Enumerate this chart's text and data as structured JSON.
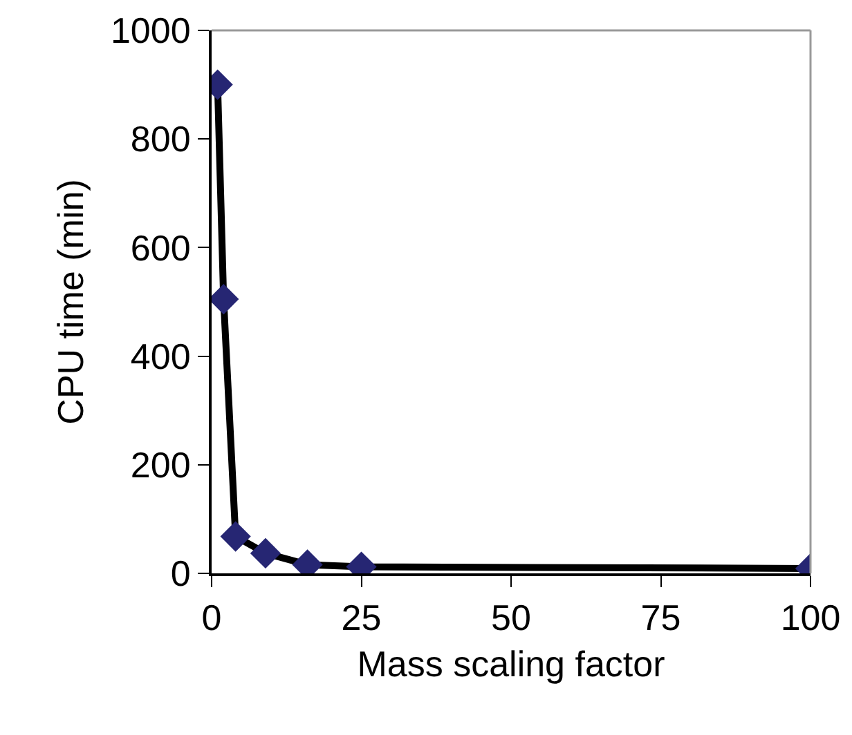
{
  "chart_data": {
    "type": "line",
    "xlabel": "Mass scaling factor",
    "ylabel": "CPU time (min)",
    "x": [
      1,
      2,
      4,
      9,
      16,
      25,
      100
    ],
    "series": [
      {
        "color": "#262673",
        "values": [
          900,
          505,
          68,
          37,
          16,
          12,
          9
        ]
      }
    ],
    "xlim": [
      0,
      100
    ],
    "xticks": [
      0,
      25,
      50,
      75,
      100
    ],
    "ylim": [
      0,
      1000
    ],
    "yticks": [
      0,
      200,
      400,
      600,
      800,
      1000
    ],
    "grid": false,
    "marker": "diamond",
    "line_style": "solid"
  }
}
